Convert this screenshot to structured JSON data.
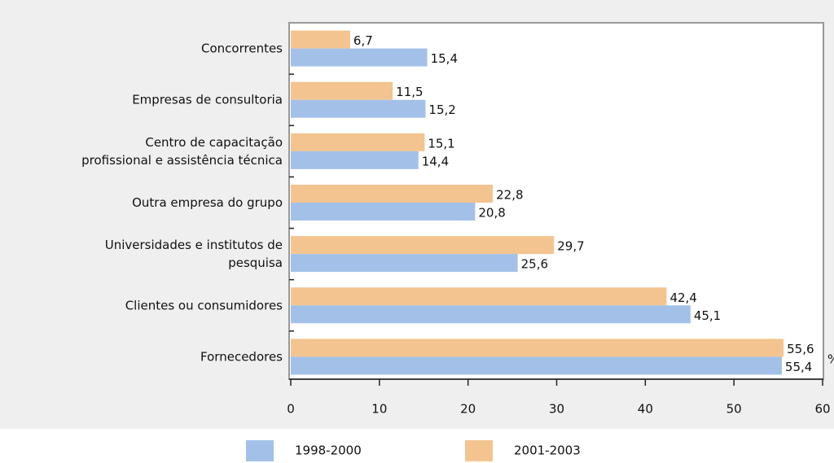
{
  "chart_data": {
    "type": "bar",
    "orientation": "horizontal",
    "categories": [
      [
        "Concorrentes"
      ],
      [
        "Empresas de consultoria"
      ],
      [
        "Centro de capacitação",
        "profissional e assistência técnica"
      ],
      [
        "Outra empresa do grupo"
      ],
      [
        "Universidades e institutos de",
        "pesquisa"
      ],
      [
        "Clientes ou consumidores"
      ],
      [
        "Fornecedores"
      ]
    ],
    "series": [
      {
        "name": "1998-2000",
        "color": "#a3c1e8",
        "values": [
          15.4,
          15.2,
          14.4,
          20.8,
          25.6,
          45.1,
          55.4
        ],
        "value_labels": [
          "15,4",
          "15,2",
          "14,4",
          "20,8",
          "25,6",
          "45,1",
          "55,4"
        ]
      },
      {
        "name": "2001-2003",
        "color": "#f3c48f",
        "values": [
          6.7,
          11.5,
          15.1,
          22.8,
          29.7,
          42.4,
          55.6
        ],
        "value_labels": [
          "6,7",
          "11,5",
          "15,1",
          "22,8",
          "29,7",
          "42,4",
          "55,6"
        ]
      }
    ],
    "unit": "%",
    "xlim": [
      0,
      60
    ],
    "xticks": [
      0,
      10,
      20,
      30,
      40,
      50,
      60
    ]
  }
}
